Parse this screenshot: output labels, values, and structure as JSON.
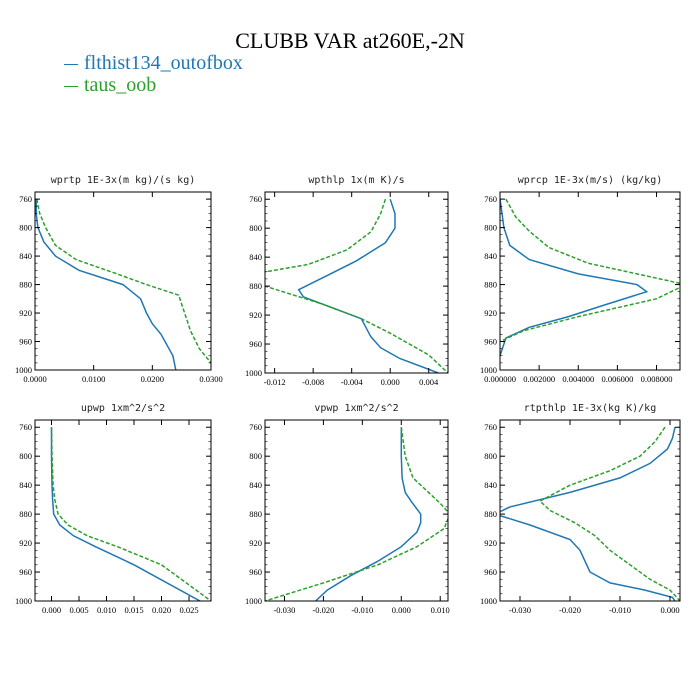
{
  "title": "CLUBB VAR at260E,-2N",
  "legend": [
    {
      "label": "flthist134_outofbox",
      "color": "#1f77b4"
    },
    {
      "label": "taus_oob",
      "color": "#2ca02c"
    }
  ],
  "chart_data": [
    {
      "type": "line",
      "title": "wprtp  1E-3x(m kg)/(s kg)",
      "xlim": [
        0,
        0.03
      ],
      "ylim": [
        1000,
        750
      ],
      "xticks": [
        0,
        0.01,
        0.02,
        0.03
      ],
      "xticklabels": [
        "0.0000",
        "0.0100",
        "0.0200",
        "0.0300"
      ],
      "yticks": [
        760,
        800,
        840,
        880,
        920,
        960,
        1000
      ],
      "series": [
        {
          "name": "flthist134_outofbox",
          "x": [
            0.0002,
            0.0002,
            0.0005,
            0.0015,
            0.0035,
            0.0075,
            0.015,
            0.018,
            0.019,
            0.02,
            0.0215,
            0.0235,
            0.024
          ],
          "y": [
            760,
            780,
            800,
            820,
            840,
            860,
            880,
            900,
            920,
            935,
            950,
            980,
            1000
          ]
        },
        {
          "name": "taus_oob",
          "x": [
            0.0003,
            0.0008,
            0.0018,
            0.0035,
            0.007,
            0.014,
            0.019,
            0.0245,
            0.0255,
            0.0265,
            0.028,
            0.03
          ],
          "y": [
            760,
            780,
            800,
            825,
            845,
            865,
            880,
            895,
            920,
            945,
            970,
            990
          ]
        }
      ]
    },
    {
      "type": "line",
      "title": "wpthlp  1x(m K)/s",
      "xlim": [
        -0.013,
        0.006
      ],
      "ylim": [
        1000,
        750
      ],
      "xticks": [
        -0.012,
        -0.008,
        -0.004,
        0.0,
        0.004
      ],
      "xticklabels": [
        "-0.012",
        "-0.008",
        "-0.004",
        "0.000",
        "0.004"
      ],
      "yticks": [
        760,
        800,
        840,
        880,
        920,
        960,
        1000
      ],
      "series": [
        {
          "name": "flthist134_outofbox",
          "x": [
            0.0,
            0.0005,
            0.0005,
            -0.0005,
            -0.0035,
            -0.0065,
            -0.0095,
            -0.009,
            -0.006,
            -0.003,
            -0.002,
            -0.001,
            0.001,
            0.005
          ],
          "y": [
            760,
            780,
            800,
            820,
            845,
            865,
            885,
            895,
            910,
            925,
            950,
            965,
            980,
            1000
          ]
        },
        {
          "name": "taus_oob",
          "x": [
            -0.0005,
            -0.001,
            -0.002,
            -0.0045,
            -0.0085,
            -0.015,
            -0.013,
            -0.007,
            -0.003,
            0.0,
            0.004,
            0.006
          ],
          "y": [
            760,
            780,
            805,
            830,
            850,
            865,
            880,
            905,
            925,
            945,
            975,
            1000
          ]
        }
      ]
    },
    {
      "type": "line",
      "title": "wprcp  1E-3x(m/s) (kg/kg)",
      "xlim": [
        0,
        0.0092
      ],
      "ylim": [
        1000,
        750
      ],
      "xticks": [
        0,
        0.002,
        0.004,
        0.006,
        0.008
      ],
      "xticklabels": [
        "0.000000",
        "0.002000",
        "0.004000",
        "0.006000",
        "0.008000"
      ],
      "yticks": [
        760,
        800,
        840,
        880,
        920,
        960,
        1000
      ],
      "series": [
        {
          "name": "flthist134_outofbox",
          "x": [
            0.0,
            0.0001,
            0.0002,
            0.0005,
            0.0015,
            0.004,
            0.007,
            0.0075,
            0.0052,
            0.0035,
            0.0015,
            0.0003,
            0.0
          ],
          "y": [
            760,
            780,
            800,
            825,
            845,
            865,
            880,
            890,
            910,
            925,
            940,
            955,
            980
          ]
        },
        {
          "name": "taus_oob",
          "x": [
            0.0003,
            0.0008,
            0.0015,
            0.0025,
            0.0045,
            0.0075,
            0.0095,
            0.008,
            0.004,
            0.0012,
            0.0
          ],
          "y": [
            760,
            785,
            805,
            828,
            850,
            868,
            880,
            900,
            925,
            945,
            960
          ]
        }
      ]
    },
    {
      "type": "line",
      "title": "upwp  1xm^2/s^2",
      "xlim": [
        -0.003,
        0.029
      ],
      "ylim": [
        1000,
        750
      ],
      "xticks": [
        0,
        0.005,
        0.01,
        0.015,
        0.02,
        0.025
      ],
      "xticklabels": [
        "0.000",
        "0.005",
        "0.010",
        "0.015",
        "0.020",
        "0.025"
      ],
      "yticks": [
        760,
        800,
        840,
        880,
        920,
        960,
        1000
      ],
      "series": [
        {
          "name": "flthist134_outofbox",
          "x": [
            0.0,
            0.0,
            0.0001,
            0.0002,
            0.0004,
            0.0015,
            0.004,
            0.008,
            0.015,
            0.027
          ],
          "y": [
            760,
            800,
            840,
            860,
            880,
            895,
            910,
            925,
            950,
            1000
          ]
        },
        {
          "name": "taus_oob",
          "x": [
            0.0,
            0.0001,
            0.0003,
            0.0006,
            0.0012,
            0.003,
            0.0065,
            0.012,
            0.02,
            0.029
          ],
          "y": [
            760,
            800,
            840,
            860,
            880,
            895,
            910,
            925,
            950,
            1000
          ]
        }
      ]
    },
    {
      "type": "line",
      "title": "vpwp  1xm^2/s^2",
      "xlim": [
        -0.035,
        0.012
      ],
      "ylim": [
        1000,
        750
      ],
      "xticks": [
        -0.03,
        -0.02,
        -0.01,
        0.0,
        0.01
      ],
      "xticklabels": [
        "-0.030",
        "-0.020",
        "-0.010",
        "0.000",
        "0.010"
      ],
      "yticks": [
        760,
        800,
        840,
        880,
        920,
        960,
        1000
      ],
      "series": [
        {
          "name": "flthist134_outofbox",
          "x": [
            0.0,
            0.0,
            0.0002,
            0.001,
            0.0025,
            0.005,
            0.005,
            0.004,
            0.0,
            -0.006,
            -0.013,
            -0.019,
            -0.022
          ],
          "y": [
            760,
            800,
            830,
            850,
            862,
            880,
            892,
            905,
            925,
            945,
            965,
            985,
            1000
          ]
        },
        {
          "name": "taus_oob",
          "x": [
            0.0,
            0.001,
            0.003,
            0.007,
            0.01,
            0.0125,
            0.011,
            0.004,
            -0.006,
            -0.02,
            -0.035
          ],
          "y": [
            760,
            800,
            830,
            850,
            865,
            880,
            900,
            925,
            950,
            975,
            1000
          ]
        }
      ]
    },
    {
      "type": "line",
      "title": "rtpthlp  1E-3x(kg K)/kg",
      "xlim": [
        -0.034,
        0.002
      ],
      "ylim": [
        1000,
        750
      ],
      "xticks": [
        -0.03,
        -0.02,
        -0.01,
        0.0
      ],
      "xticklabels": [
        "-0.030",
        "-0.020",
        "-0.010",
        "0.000"
      ],
      "yticks": [
        760,
        800,
        840,
        880,
        920,
        960,
        1000
      ],
      "series": [
        {
          "name": "flthist134_outofbox",
          "x": [
            0.001,
            0.0005,
            -0.0005,
            -0.004,
            -0.01,
            -0.02,
            -0.032,
            -0.035,
            -0.028,
            -0.02,
            -0.018,
            -0.017,
            -0.016,
            -0.012,
            -0.005,
            0.0005,
            0.001
          ],
          "y": [
            760,
            775,
            790,
            810,
            830,
            850,
            870,
            880,
            895,
            915,
            930,
            945,
            960,
            975,
            985,
            995,
            1000
          ]
        },
        {
          "name": "taus_oob",
          "x": [
            -0.001,
            -0.003,
            -0.006,
            -0.012,
            -0.02,
            -0.026,
            -0.024,
            -0.019,
            -0.015,
            -0.012,
            -0.008,
            -0.004,
            0.0,
            0.002
          ],
          "y": [
            760,
            780,
            800,
            820,
            840,
            862,
            875,
            892,
            910,
            930,
            950,
            970,
            985,
            1000
          ]
        }
      ]
    }
  ]
}
